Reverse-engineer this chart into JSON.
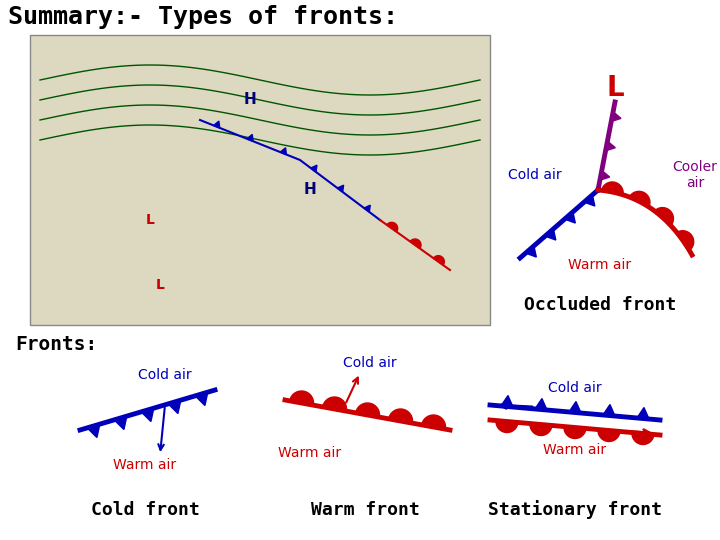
{
  "title": "Summary:- Types of fronts:",
  "title_fontsize": 18,
  "background_color": "#ffffff",
  "cold_color": "#0000bb",
  "warm_color": "#cc0000",
  "purple_color": "#800080",
  "fronts_label": "Fronts:",
  "cold_front_label": "Cold front",
  "warm_front_label": "Warm front",
  "stationary_front_label": "Stationary front",
  "occluded_front_label": "Occluded front",
  "cold_air_label": "Cold air",
  "warm_air_label": "Warm air",
  "cooler_air_label": "Cooler\nair",
  "L_label": "L",
  "L_color": "#cc0000",
  "label_fontsize": 10,
  "front_label_fontsize": 13
}
